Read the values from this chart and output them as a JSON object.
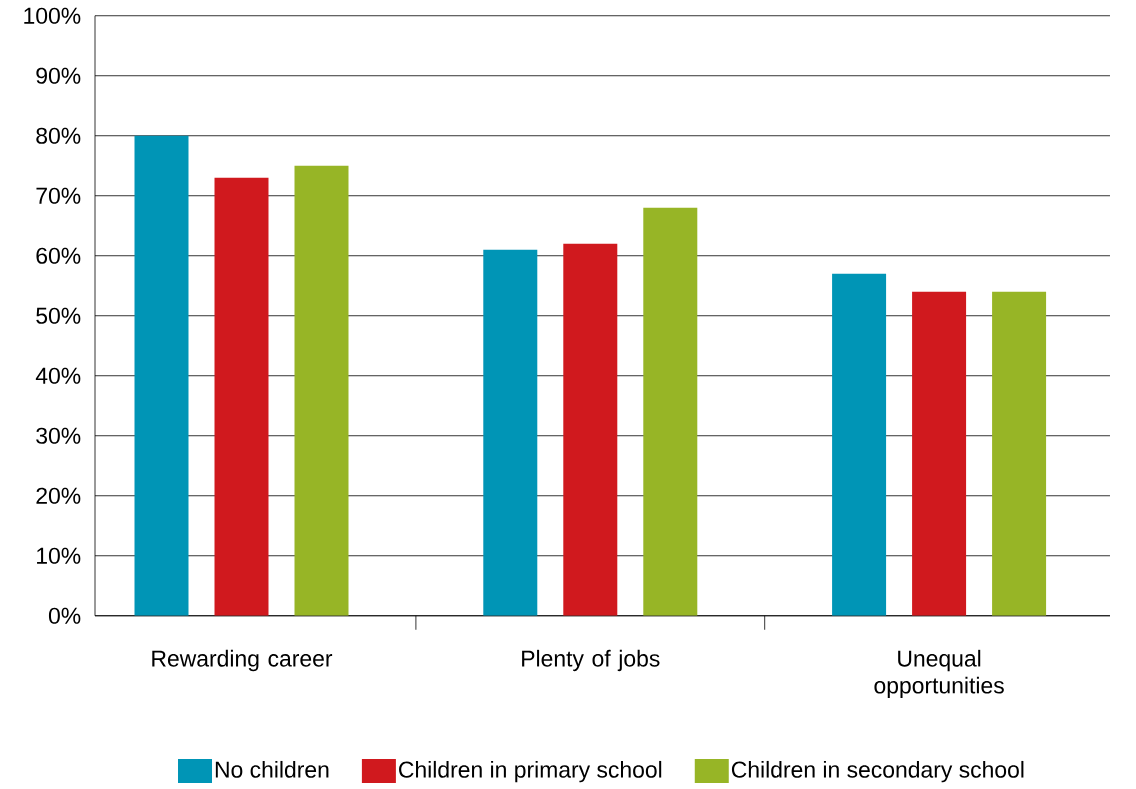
{
  "chart_data": {
    "type": "bar",
    "categories": [
      "Rewarding career",
      "Plenty of jobs",
      "Unequal opportunities"
    ],
    "series": [
      {
        "name": "No children",
        "color": "#0095b6",
        "values": [
          80,
          61,
          57
        ]
      },
      {
        "name": "Children in primary school",
        "color": "#d0191e",
        "values": [
          73,
          62,
          54
        ]
      },
      {
        "name": "Children in secondary school",
        "color": "#97b526",
        "values": [
          75,
          68,
          54
        ]
      }
    ],
    "ylim": [
      0,
      100
    ],
    "yticks": [
      {
        "value": 0,
        "label": "0%"
      },
      {
        "value": 10,
        "label": "10%"
      },
      {
        "value": 20,
        "label": "20%"
      },
      {
        "value": 30,
        "label": "30%"
      },
      {
        "value": 40,
        "label": "40%"
      },
      {
        "value": 50,
        "label": "50%"
      },
      {
        "value": 60,
        "label": "60%"
      },
      {
        "value": 70,
        "label": "70%"
      },
      {
        "value": 80,
        "label": "80%"
      },
      {
        "value": 90,
        "label": "90%"
      },
      {
        "value": 100,
        "label": "100%"
      }
    ],
    "grid": "y",
    "legend": "bottom"
  }
}
